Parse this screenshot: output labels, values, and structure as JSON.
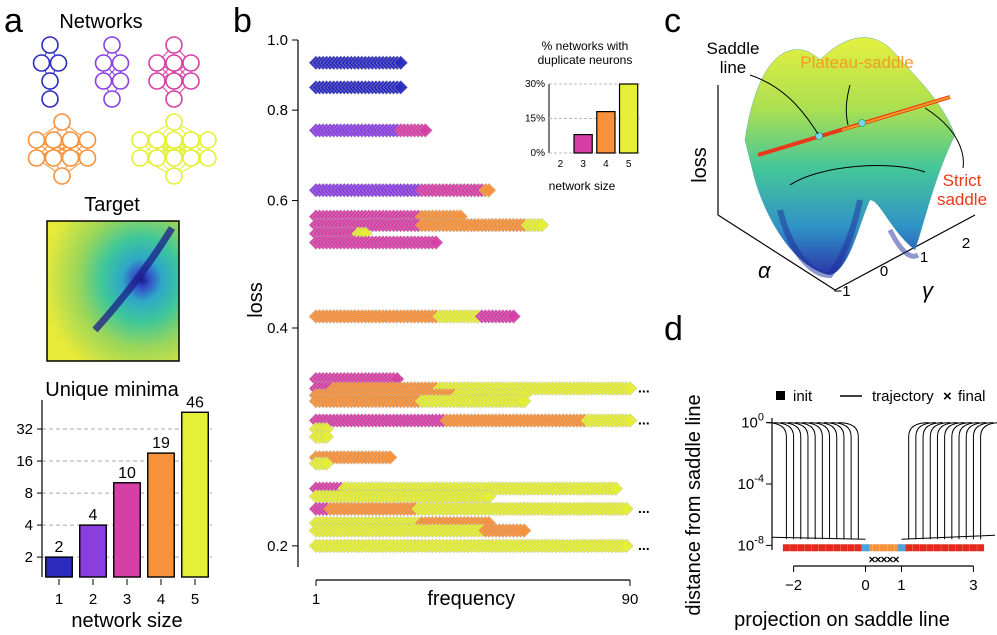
{
  "panels": {
    "a": "a",
    "b": "b",
    "c": "c",
    "d": "d"
  },
  "colors": {
    "size1": "#2b2bbf",
    "size2": "#8a3ee0",
    "size3": "#d63fa6",
    "size4": "#f7913a",
    "size5": "#e5ef35",
    "saddle_red": "#e8391b",
    "saddle_orange": "#f39c22",
    "init_red": "#e32a1c",
    "init_orange": "#f7913a",
    "init_blue": "#4aa3df"
  },
  "panel_a": {
    "networks_title": "Networks",
    "target_title": "Target",
    "chart_title": "Unique minima"
  },
  "panel_b": {
    "inset_title_line1": "% networks with",
    "inset_title_line2": "duplicate neurons",
    "inset_xlabel": "network size"
  },
  "panel_c": {
    "label_saddle_line_1": "Saddle",
    "label_saddle_line_2": "line",
    "label_plateau": "Plateau-saddle",
    "label_strict_1": "Strict",
    "label_strict_2": "saddle",
    "zlabel": "loss",
    "alpha_label": "α",
    "gamma_label": "γ",
    "gamma_ticks": [
      "−1",
      "0",
      "1",
      "2"
    ]
  },
  "panel_d": {
    "legend_init": "init",
    "legend_trajectory": "trajectory",
    "legend_final": "final",
    "final_marker": "×××××"
  },
  "chart_data": [
    {
      "id": "unique-minima",
      "type": "bar",
      "title": "Unique minima",
      "xlabel": "network size",
      "ylabel": "",
      "categories": [
        "1",
        "2",
        "3",
        "4",
        "5"
      ],
      "values": [
        2,
        4,
        10,
        19,
        46
      ],
      "y_scale": "log2",
      "ylim": [
        1.3,
        60
      ],
      "y_ticks": [
        "2",
        "4",
        "8",
        "16",
        "32"
      ],
      "grid": "dashed horizontal"
    },
    {
      "id": "loss-frequency",
      "type": "scatter",
      "xlabel": "frequency",
      "ylabel": "loss",
      "x_ticks": [
        "1",
        "90"
      ],
      "xlim": [
        1,
        90
      ],
      "y_scale": "log",
      "ylim": [
        0.19,
        1.0
      ],
      "y_ticks": [
        "1.0",
        "0.8",
        "0.6",
        "0.4",
        "0.2"
      ],
      "continuation_marker": "...",
      "rows": [
        {
          "loss": 0.93,
          "segments": [
            {
              "size": 1,
              "count": 25
            }
          ]
        },
        {
          "loss": 0.86,
          "segments": [
            {
              "size": 1,
              "count": 25
            }
          ]
        },
        {
          "loss": 0.75,
          "segments": [
            {
              "size": 2,
              "count": 24
            },
            {
              "size": 3,
              "count": 8
            }
          ]
        },
        {
          "loss": 0.62,
          "segments": [
            {
              "size": 2,
              "count": 30
            },
            {
              "size": 3,
              "count": 18
            },
            {
              "size": 4,
              "count": 2
            }
          ]
        },
        {
          "loss": 0.57,
          "segments": [
            {
              "size": 3,
              "count": 30
            },
            {
              "size": 4,
              "count": 12
            }
          ]
        },
        {
          "loss": 0.555,
          "segments": [
            {
              "size": 3,
              "count": 30
            },
            {
              "size": 4,
              "count": 30
            },
            {
              "size": 5,
              "count": 5
            }
          ]
        },
        {
          "loss": 0.54,
          "segments": [
            {
              "size": 3,
              "count": 12
            },
            {
              "size": 5,
              "count": 3
            }
          ]
        },
        {
          "loss": 0.525,
          "segments": [
            {
              "size": 3,
              "count": 35
            }
          ]
        },
        {
          "loss": 0.415,
          "segments": [
            {
              "size": 4,
              "count": 35
            },
            {
              "size": 5,
              "count": 12
            },
            {
              "size": 3,
              "count": 10
            }
          ]
        },
        {
          "loss": 0.34,
          "segments": [
            {
              "size": 3,
              "count": 24
            }
          ]
        },
        {
          "loss": 0.33,
          "segments": [
            {
              "size": 3,
              "count": 5
            },
            {
              "size": 4,
              "count": 30
            },
            {
              "size": 5,
              "count": 55
            }
          ],
          "continues": true
        },
        {
          "loss": 0.323,
          "segments": [
            {
              "size": 4,
              "count": 40
            },
            {
              "size": 5,
              "count": 20
            }
          ]
        },
        {
          "loss": 0.317,
          "segments": [
            {
              "size": 4,
              "count": 30
            },
            {
              "size": 5,
              "count": 30
            }
          ]
        },
        {
          "loss": 0.298,
          "segments": [
            {
              "size": 3,
              "count": 37
            },
            {
              "size": 4,
              "count": 40
            },
            {
              "size": 5,
              "count": 13
            }
          ],
          "continues": true
        },
        {
          "loss": 0.29,
          "segments": [
            {
              "size": 5,
              "count": 4
            }
          ]
        },
        {
          "loss": 0.283,
          "segments": [
            {
              "size": 5,
              "count": 4
            }
          ]
        },
        {
          "loss": 0.265,
          "segments": [
            {
              "size": 4,
              "count": 22
            }
          ]
        },
        {
          "loss": 0.26,
          "segments": [
            {
              "size": 5,
              "count": 4
            }
          ]
        },
        {
          "loss": 0.24,
          "segments": [
            {
              "size": 3,
              "count": 8
            },
            {
              "size": 5,
              "count": 78
            }
          ]
        },
        {
          "loss": 0.234,
          "segments": [
            {
              "size": 5,
              "count": 50
            }
          ]
        },
        {
          "loss": 0.225,
          "segments": [
            {
              "size": 3,
              "count": 4
            },
            {
              "size": 4,
              "count": 25
            },
            {
              "size": 5,
              "count": 60
            }
          ],
          "continues": true
        },
        {
          "loss": 0.215,
          "segments": [
            {
              "size": 5,
              "count": 30
            },
            {
              "size": 4,
              "count": 20
            }
          ]
        },
        {
          "loss": 0.21,
          "segments": [
            {
              "size": 5,
              "count": 48
            },
            {
              "size": 4,
              "count": 12
            }
          ]
        },
        {
          "loss": 0.2,
          "segments": [
            {
              "size": 5,
              "count": 89
            }
          ],
          "continues": true
        }
      ]
    },
    {
      "id": "duplicate-neurons-inset",
      "type": "bar",
      "title": "% networks with duplicate neurons",
      "xlabel": "network size",
      "categories": [
        "2",
        "3",
        "4",
        "5"
      ],
      "values": [
        0,
        8,
        18,
        30
      ],
      "ylim": [
        0,
        30
      ],
      "y_ticks": [
        "0%",
        "15%",
        "30%"
      ]
    },
    {
      "id": "saddle-line-distance",
      "type": "line",
      "xlabel": "projection on saddle line",
      "ylabel": "distance from saddle line",
      "x_ticks": [
        "−2",
        "0",
        "1",
        "3"
      ],
      "xlim": [
        -2.6,
        3.6
      ],
      "y_scale": "log10",
      "ylim": [
        -8.3,
        0.3
      ],
      "y_ticks": [
        "10^0",
        "10^-4",
        "10^-8"
      ],
      "left_init_x": [
        -2.2,
        -2.0,
        -1.8,
        -1.6,
        -1.4,
        -1.2,
        -1.0,
        -0.8,
        -0.6,
        -0.4,
        -0.2
      ],
      "right_init_x": [
        1.2,
        1.4,
        1.6,
        1.8,
        2.0,
        2.2,
        2.4,
        2.6,
        2.8,
        3.0,
        3.2
      ],
      "middle_init_x": [
        0.1,
        0.3,
        0.5,
        0.7,
        0.9
      ],
      "boundary_init_x": [
        0.0,
        1.0
      ]
    }
  ]
}
